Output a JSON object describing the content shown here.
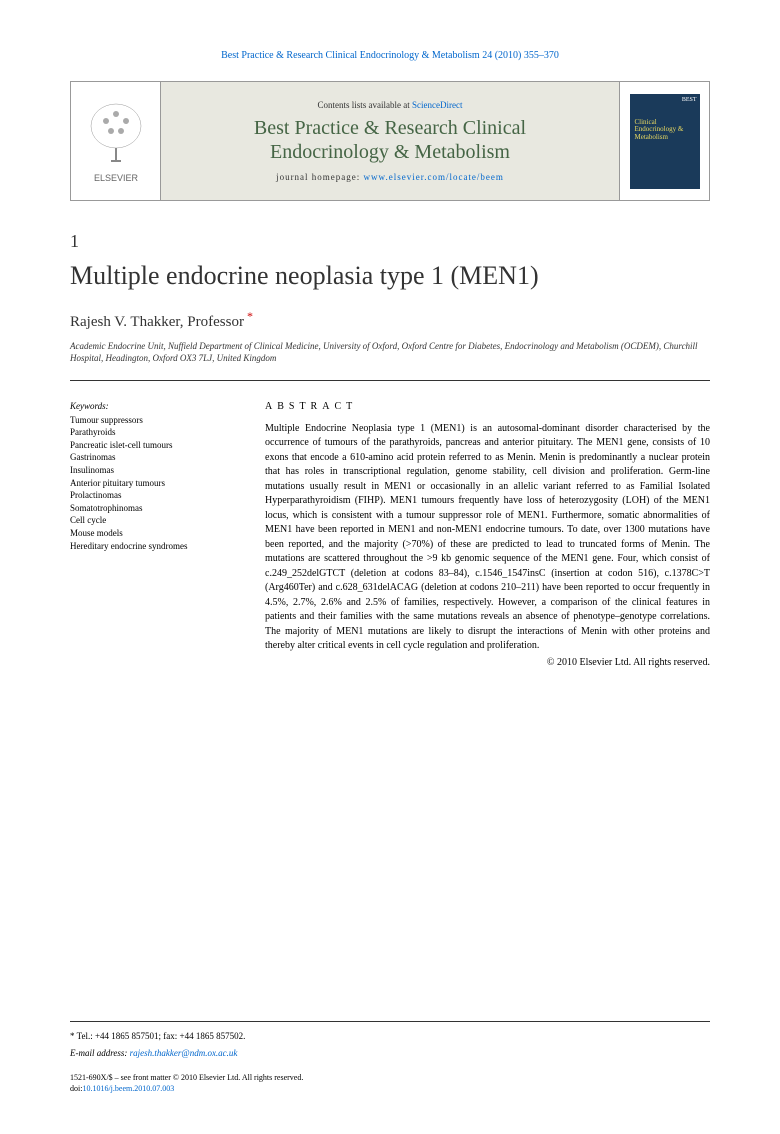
{
  "header": {
    "citation": "Best Practice & Research Clinical Endocrinology & Metabolism 24 (2010) 355–370"
  },
  "banner": {
    "contents_prefix": "Contents lists available at ",
    "contents_link": "ScienceDirect",
    "journal_line1": "Best Practice & Research Clinical",
    "journal_line2": "Endocrinology & Metabolism",
    "homepage_prefix": "journal homepage: ",
    "homepage_url": "www.elsevier.com/locate/beem",
    "elsevier_label": "ELSEVIER",
    "cover_best": "BEST",
    "cover_title": "Clinical Endocrinology & Metabolism"
  },
  "article": {
    "section_num": "1",
    "title": "Multiple endocrine neoplasia type 1 (MEN1)",
    "author": "Rajesh V. Thakker, Professor",
    "affiliation": "Academic Endocrine Unit, Nuffield Department of Clinical Medicine, University of Oxford, Oxford Centre for Diabetes, Endocrinology and Metabolism (OCDEM), Churchill Hospital, Headington, Oxford OX3 7LJ, United Kingdom"
  },
  "keywords": {
    "heading": "Keywords:",
    "items": [
      "Tumour suppressors",
      "Parathyroids",
      "Pancreatic islet-cell tumours",
      "Gastrinomas",
      "Insulinomas",
      "Anterior pituitary tumours",
      "Prolactinomas",
      "Somatotrophinomas",
      "Cell cycle",
      "Mouse models",
      "Hereditary endocrine syndromes"
    ]
  },
  "abstract": {
    "heading": "ABSTRACT",
    "text": "Multiple Endocrine Neoplasia type 1 (MEN1) is an autosomal-dominant disorder characterised by the occurrence of tumours of the parathyroids, pancreas and anterior pituitary. The MEN1 gene, consists of 10 exons that encode a 610-amino acid protein referred to as Menin. Menin is predominantly a nuclear protein that has roles in transcriptional regulation, genome stability, cell division and proliferation. Germ-line mutations usually result in MEN1 or occasionally in an allelic variant referred to as Familial Isolated Hyperparathyroidism (FIHP). MEN1 tumours frequently have loss of heterozygosity (LOH) of the MEN1 locus, which is consistent with a tumour suppressor role of MEN1. Furthermore, somatic abnormalities of MEN1 have been reported in MEN1 and non-MEN1 endocrine tumours. To date, over 1300 mutations have been reported, and the majority (>70%) of these are predicted to lead to truncated forms of Menin. The mutations are scattered throughout the >9 kb genomic sequence of the MEN1 gene. Four, which consist of c.249_252delGTCT (deletion at codons 83–84), c.1546_1547insC (insertion at codon 516), c.1378C>T (Arg460Ter) and c.628_631delACAG (deletion at codons 210–211) have been reported to occur frequently in 4.5%, 2.7%, 2.6% and 2.5% of families, respectively. However, a comparison of the clinical features in patients and their families with the same mutations reveals an absence of phenotype–genotype correlations. The majority of MEN1 mutations are likely to disrupt the interactions of Menin with other proteins and thereby alter critical events in cell cycle regulation and proliferation.",
    "copyright": "© 2010 Elsevier Ltd. All rights reserved."
  },
  "footer": {
    "tel_label": "* Tel.: +44 1865 857501; fax: +44 1865 857502.",
    "email_label": "E-mail address:",
    "email": "rajesh.thakker@ndm.ox.ac.uk",
    "issn": "1521-690X/$ – see front matter © 2010 Elsevier Ltd. All rights reserved.",
    "doi_prefix": "doi:",
    "doi": "10.1016/j.beem.2010.07.003"
  }
}
